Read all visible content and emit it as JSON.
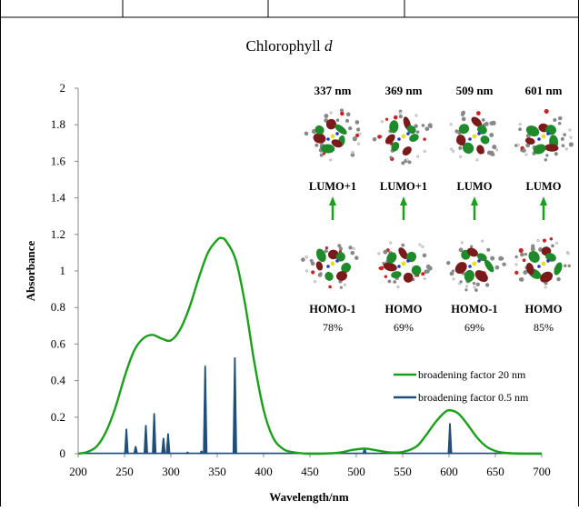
{
  "chart_data": {
    "type": "line",
    "title": "Chlorophyll",
    "title_italic": "d",
    "xlabel": "Wavelength/nm",
    "ylabel": "Absorbance",
    "xlim": [
      200,
      700
    ],
    "ylim": [
      0,
      2
    ],
    "x_ticks": [
      200,
      250,
      300,
      350,
      400,
      450,
      500,
      550,
      600,
      650,
      700
    ],
    "y_ticks": [
      "0",
      "0.2",
      "0.4",
      "0.6",
      "0.8",
      "1",
      "1.2",
      "1.4",
      "1.6",
      "1.8",
      "2"
    ],
    "legend_position": "lower-right",
    "colors": {
      "broad": "#1aa01a",
      "sticks": "#1f4e79"
    },
    "series": [
      {
        "name": "broadening factor 20 nm",
        "points": [
          [
            200,
            0
          ],
          [
            210,
            0.01
          ],
          [
            220,
            0.04
          ],
          [
            230,
            0.12
          ],
          [
            240,
            0.25
          ],
          [
            250,
            0.42
          ],
          [
            260,
            0.56
          ],
          [
            270,
            0.63
          ],
          [
            280,
            0.65
          ],
          [
            290,
            0.63
          ],
          [
            300,
            0.62
          ],
          [
            310,
            0.68
          ],
          [
            320,
            0.8
          ],
          [
            330,
            0.96
          ],
          [
            340,
            1.1
          ],
          [
            350,
            1.17
          ],
          [
            355,
            1.18
          ],
          [
            360,
            1.16
          ],
          [
            370,
            1.06
          ],
          [
            380,
            0.82
          ],
          [
            390,
            0.5
          ],
          [
            400,
            0.24
          ],
          [
            410,
            0.09
          ],
          [
            420,
            0.03
          ],
          [
            430,
            0.01
          ],
          [
            450,
            0
          ],
          [
            480,
            0.005
          ],
          [
            495,
            0.02
          ],
          [
            509,
            0.028
          ],
          [
            520,
            0.02
          ],
          [
            535,
            0.008
          ],
          [
            550,
            0.01
          ],
          [
            565,
            0.04
          ],
          [
            575,
            0.1
          ],
          [
            585,
            0.17
          ],
          [
            595,
            0.225
          ],
          [
            601,
            0.238
          ],
          [
            610,
            0.22
          ],
          [
            620,
            0.16
          ],
          [
            630,
            0.09
          ],
          [
            640,
            0.04
          ],
          [
            650,
            0.015
          ],
          [
            660,
            0.005
          ],
          [
            680,
            0
          ],
          [
            700,
            0
          ]
        ]
      },
      {
        "name": "broadening factor 0.5 nm",
        "sticks": [
          [
            252,
            0.135
          ],
          [
            262,
            0.04
          ],
          [
            273,
            0.155
          ],
          [
            282,
            0.22
          ],
          [
            292,
            0.085
          ],
          [
            297,
            0.11
          ],
          [
            318,
            0.01
          ],
          [
            333,
            0.015
          ],
          [
            337,
            0.48
          ],
          [
            369,
            0.525
          ],
          [
            509,
            0.03
          ],
          [
            601,
            0.165
          ]
        ]
      }
    ],
    "annotations": {
      "wavelengths": [
        "337 nm",
        "369 nm",
        "509 nm",
        "601 nm"
      ],
      "upper_orbitals": [
        "LUMO+1",
        "LUMO+1",
        "LUMO",
        "LUMO"
      ],
      "lower_orbitals": [
        "HOMO-1",
        "HOMO",
        "HOMO-1",
        "HOMO"
      ],
      "percentages": [
        "78%",
        "69%",
        "69%",
        "85%"
      ]
    }
  }
}
